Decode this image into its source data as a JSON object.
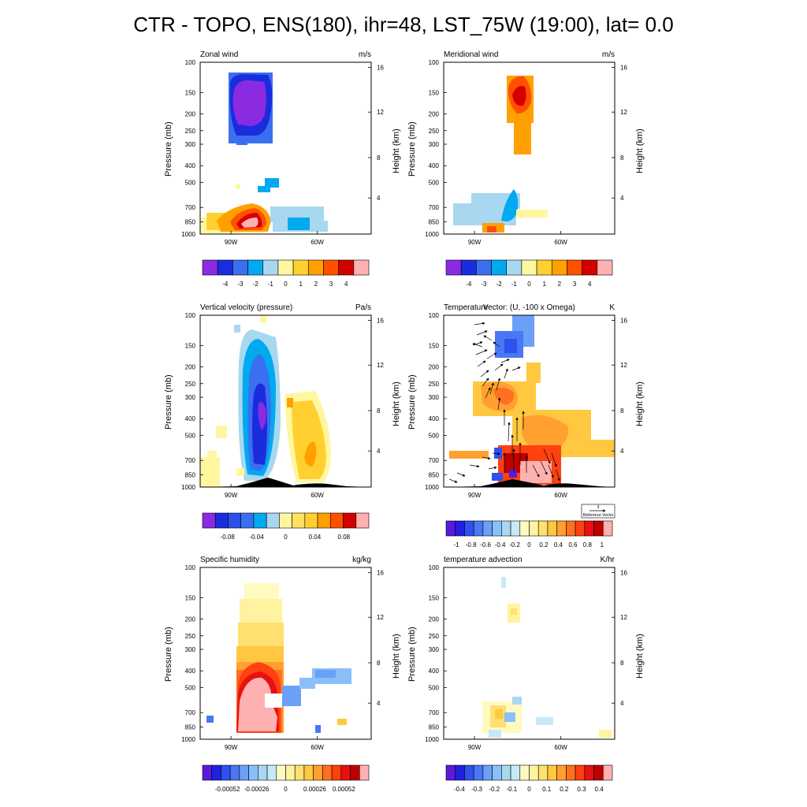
{
  "title": "CTR - TOPO, ENS(180), ihr=48, LST_75W (19:00), lat=  0.0",
  "common": {
    "pressure_ticks": [
      "100",
      "150",
      "200",
      "250",
      "300",
      "400",
      "500",
      "700",
      "850",
      "1000"
    ],
    "height_ticks": [
      "16",
      "12",
      "8",
      "4"
    ],
    "lon_ticks": [
      "90W",
      "60W"
    ],
    "left_ylabel": "Pressure (mb)",
    "right_ylabel": "Height (km)"
  },
  "panels": [
    {
      "id": "zonal",
      "title": "Zonal wind",
      "units": "m/s",
      "colorbar": {
        "labels": [
          "-4",
          "-3",
          "-2",
          "-1",
          "0",
          "1",
          "2",
          "3",
          "4"
        ],
        "colors": [
          "#8a2be2",
          "#1a2ddd",
          "#3a6ff0",
          "#00aaf0",
          "#a8d8f0",
          "#fff7a0",
          "#ffd030",
          "#ffa000",
          "#ff5000",
          "#d40000",
          "#ffb0b0"
        ]
      }
    },
    {
      "id": "meridional",
      "title": "Meridional wind",
      "units": "m/s",
      "colorbar": {
        "labels": [
          "-4",
          "-3",
          "-2",
          "-1",
          "0",
          "1",
          "2",
          "3",
          "4"
        ],
        "colors": [
          "#8a2be2",
          "#1a2ddd",
          "#3a6ff0",
          "#00aaf0",
          "#a8d8f0",
          "#fff7a0",
          "#ffd030",
          "#ffa000",
          "#ff5000",
          "#d40000",
          "#ffb0b0"
        ]
      }
    },
    {
      "id": "omega",
      "title": "Vertical velocity (pressure)",
      "units": "Pa/s",
      "colorbar": {
        "labels": [
          "-0.08",
          "-0.04",
          "0",
          "0.04",
          "0.08"
        ],
        "colors": [
          "#8a2be2",
          "#1a2ddd",
          "#2a4fe8",
          "#3a6ff0",
          "#00aaf0",
          "#a8d8f0",
          "#fff7a0",
          "#ffe060",
          "#ffd030",
          "#ffa000",
          "#ff5000",
          "#d40000",
          "#ffb0b0"
        ]
      }
    },
    {
      "id": "temperature",
      "title": "Temperature",
      "title2": "Vector: (U, -100 x Omega)",
      "units": "K",
      "reference_vector": {
        "value": "3",
        "label": "Reference Vector"
      },
      "colorbar": {
        "labels": [
          "-1",
          "-0.8",
          "-0.6",
          "-0.4",
          "-0.2",
          "0",
          "0.2",
          "0.4",
          "0.6",
          "0.8",
          "1"
        ],
        "colors": [
          "#5a1ad8",
          "#2020e0",
          "#3050f0",
          "#4a78f4",
          "#6aa0f8",
          "#8ac0fa",
          "#a8d8f0",
          "#c8e8f8",
          "#fffbc0",
          "#fff3a0",
          "#ffe070",
          "#ffc840",
          "#ffa030",
          "#ff7020",
          "#ff4010",
          "#e81010",
          "#c00000",
          "#ffb0b0"
        ]
      }
    },
    {
      "id": "humidity",
      "title": "Specific humidity",
      "units": "kg/kg",
      "colorbar": {
        "labels": [
          "-0.00052",
          "-0.00026",
          "0",
          "0.00026",
          "0.00052"
        ],
        "colors": [
          "#5a1ad8",
          "#2020e0",
          "#3050f0",
          "#4a78f4",
          "#6aa0f8",
          "#8ac0fa",
          "#a8d8f0",
          "#c8e8f8",
          "#fffbc0",
          "#fff3a0",
          "#ffe070",
          "#ffc840",
          "#ffa030",
          "#ff7020",
          "#ff4010",
          "#e81010",
          "#c00000",
          "#ffb0b0"
        ]
      }
    },
    {
      "id": "advection",
      "title": "temperature advection",
      "units": "K/hr",
      "colorbar": {
        "labels": [
          "-0.4",
          "-0.3",
          "-0.2",
          "-0.1",
          "0",
          "0.1",
          "0.2",
          "0.3",
          "0.4"
        ],
        "colors": [
          "#5a1ad8",
          "#2020e0",
          "#3050f0",
          "#4a78f4",
          "#6aa0f8",
          "#8ac0fa",
          "#a8d8f0",
          "#c8e8f8",
          "#fffbc0",
          "#fff3a0",
          "#ffe070",
          "#ffc840",
          "#ffa030",
          "#ff7020",
          "#ff4010",
          "#e81010",
          "#c00000",
          "#ffb0b0"
        ]
      }
    }
  ],
  "chart_data": {
    "type": "heatmap",
    "x_axis": {
      "ticks": [
        "90W",
        "60W"
      ]
    },
    "y_axis": {
      "label": "Pressure (mb)",
      "ticks": [
        100,
        150,
        200,
        250,
        300,
        400,
        500,
        700,
        850,
        1000
      ],
      "scale": "log",
      "reversed": true
    },
    "y2_axis": {
      "label": "Height (km)",
      "ticks": [
        16,
        12,
        8,
        4
      ]
    }
  }
}
